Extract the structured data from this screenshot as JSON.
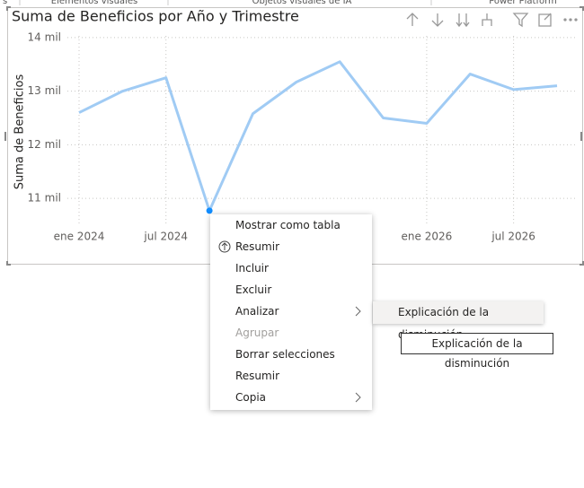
{
  "ribbon": {
    "tabs": [
      "s",
      "Elementos visuales",
      "Objetos visuales de IA",
      "Power Platform"
    ]
  },
  "chart_data": {
    "type": "line",
    "title": "Suma de Beneficios por Año y Trimestre",
    "y_label": "Suma de Beneficios",
    "x": [
      "2024-01",
      "2024-04",
      "2024-07",
      "2024-10",
      "2025-01",
      "2025-04",
      "2025-07",
      "2025-10",
      "2026-01",
      "2026-04",
      "2026-07",
      "2026-10"
    ],
    "values": [
      12600,
      13000,
      13250,
      10770,
      12580,
      13170,
      13550,
      12500,
      12400,
      13320,
      13030,
      13100
    ],
    "color": "#a0cbf4",
    "selected": 3,
    "selected_color": "#118dff",
    "ylim": [
      10600,
      14300
    ],
    "yticks": [
      {
        "value": 11000,
        "label": "11 mil"
      },
      {
        "value": 12000,
        "label": "12 mil"
      },
      {
        "value": 13000,
        "label": "13 mil"
      },
      {
        "value": 14000,
        "label": "14 mil"
      }
    ],
    "xticks": [
      {
        "value": "2024-01",
        "label": "ene 2024"
      },
      {
        "value": "2024-07",
        "label": "jul 2024"
      },
      {
        "value": "2026-01",
        "label": "ene 2026"
      },
      {
        "value": "2026-07",
        "label": "jul 2026"
      }
    ],
    "grid": true
  },
  "context_menu": {
    "items": [
      {
        "label": "Mostrar como tabla"
      },
      {
        "label": "Resumir",
        "icon": true
      },
      {
        "label": "Incluir"
      },
      {
        "label": "Excluir"
      },
      {
        "label": "Analizar",
        "submenu": true
      },
      {
        "label": "Agrupar",
        "disabled": true
      },
      {
        "label": "Borrar selecciones"
      },
      {
        "label": "Resumir"
      },
      {
        "label": "Copia",
        "submenu": true
      }
    ]
  },
  "submenu": {
    "items": [
      "Explicación de la disminución"
    ]
  },
  "tooltip": "Explicación de la disminución"
}
